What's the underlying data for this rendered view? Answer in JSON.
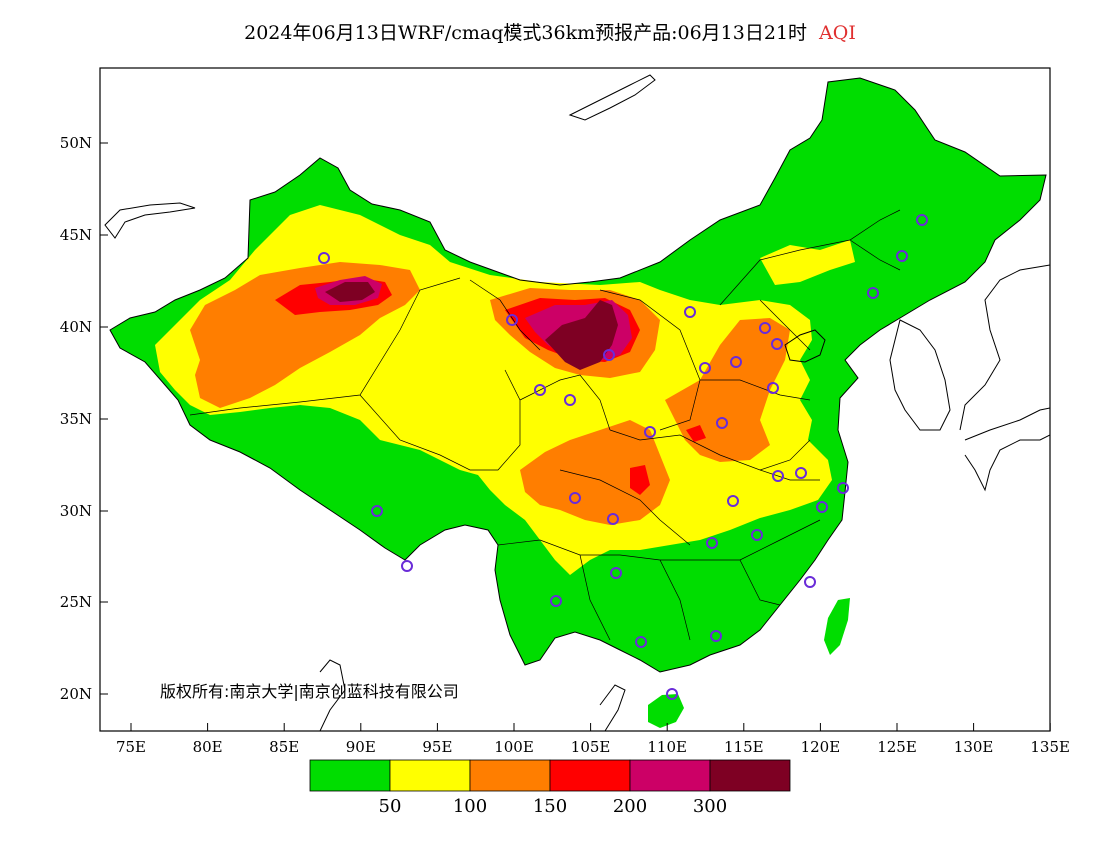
{
  "title": {
    "main": "2024年06月13日WRF/cmaq模式36km预报产品:06月13日21时",
    "variable": "AQI"
  },
  "map": {
    "copyright": "版权所有:南京大学|南京创蓝科技有限公司",
    "lat_labels": [
      "20N",
      "25N",
      "30N",
      "35N",
      "40N",
      "45N",
      "50N"
    ],
    "lon_labels": [
      "75E",
      "80E",
      "85E",
      "90E",
      "95E",
      "100E",
      "105E",
      "110E",
      "115E",
      "120E",
      "125E",
      "130E",
      "135E"
    ],
    "colors": {
      "sea_land_none": "#ffffff",
      "good": "#00dd00",
      "moderate": "#ffff00",
      "unhealthy_sensitive": "#ff7e00",
      "unhealthy": "#ff0000",
      "very_unhealthy": "#cc0066",
      "hazardous": "#7e0023",
      "station_marker": "#6a2cd8"
    }
  },
  "colorbar": {
    "tick_labels": [
      "50",
      "100",
      "150",
      "200",
      "300"
    ],
    "bins": [
      {
        "color": "#00dd00"
      },
      {
        "color": "#ffff00"
      },
      {
        "color": "#ff7e00"
      },
      {
        "color": "#ff0000"
      },
      {
        "color": "#cc0066"
      },
      {
        "color": "#7e0023"
      }
    ]
  }
}
